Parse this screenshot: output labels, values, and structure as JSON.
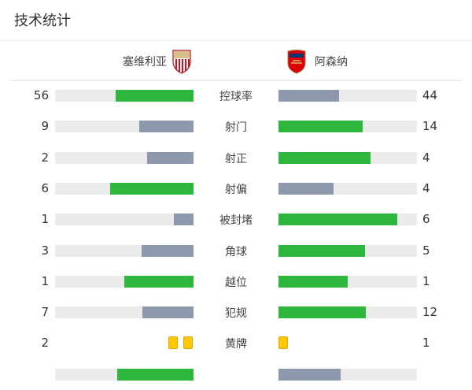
{
  "title": "技术统计",
  "teams": {
    "home": {
      "name": "塞维利亚",
      "crest_icon": "sevilla-crest-icon"
    },
    "away": {
      "name": "阿森纳",
      "crest_icon": "arsenal-crest-icon"
    }
  },
  "colors": {
    "leader": "#2db83d",
    "trailer": "#8e98ad",
    "track": "#ebebeb",
    "yellow_card": "#ffc800"
  },
  "stats": [
    {
      "label": "控球率",
      "home": "56",
      "away": "44"
    },
    {
      "label": "射门",
      "home": "9",
      "away": "14"
    },
    {
      "label": "射正",
      "home": "2",
      "away": "4"
    },
    {
      "label": "射偏",
      "home": "6",
      "away": "4"
    },
    {
      "label": "被封堵",
      "home": "1",
      "away": "6"
    },
    {
      "label": "角球",
      "home": "3",
      "away": "5"
    },
    {
      "label": "越位",
      "home": "1",
      "away": "1"
    },
    {
      "label": "犯规",
      "home": "7",
      "away": "12"
    },
    {
      "label": "黄牌",
      "home": "2",
      "away": "1",
      "type": "cards"
    }
  ],
  "partial_row": {
    "home_share": 0.55,
    "away_share": 0.45
  }
}
